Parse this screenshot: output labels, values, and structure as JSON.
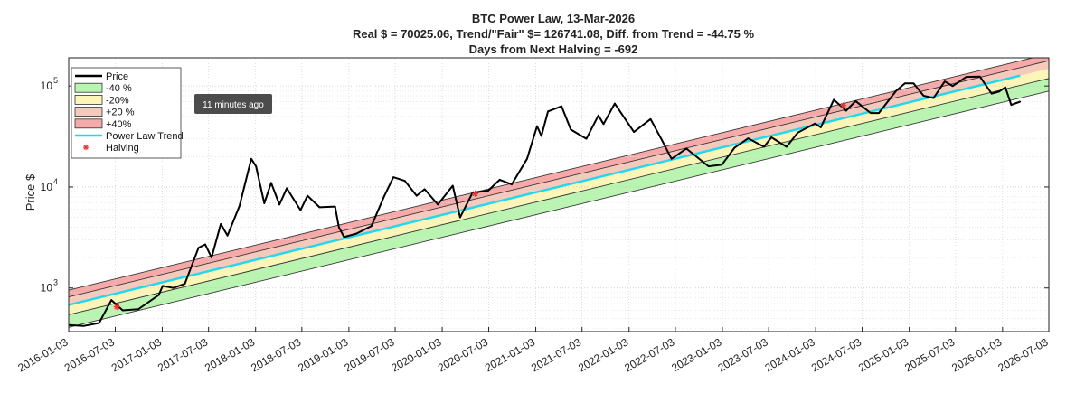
{
  "chart_data": {
    "type": "line",
    "title": "BTC Power Law, 13-Mar-2026",
    "subtitle_line1": "Real $ = 70025.06, Trend/\"Fair\" $=  126741.08, Diff. from Trend = -44.75 %",
    "subtitle_line2": "Days from Next Halving = -692",
    "ylabel": "Price $",
    "xlabel": "",
    "y_scale": "log",
    "ylim": [
      370,
      190000
    ],
    "xlim": [
      "2016-01-03",
      "2026-07-03"
    ],
    "grid": true,
    "y_ticks": [
      {
        "value": 1000,
        "base": "10",
        "exp": "3"
      },
      {
        "value": 10000,
        "base": "10",
        "exp": "4"
      },
      {
        "value": 100000,
        "base": "10",
        "exp": "5"
      }
    ],
    "x_ticks": [
      "2016-01-03",
      "2016-07-03",
      "2017-01-03",
      "2017-07-03",
      "2018-01-03",
      "2018-07-03",
      "2019-01-03",
      "2019-07-03",
      "2020-01-03",
      "2020-07-03",
      "2021-01-03",
      "2021-07-03",
      "2022-01-03",
      "2022-07-03",
      "2023-01-03",
      "2023-07-03",
      "2024-01-03",
      "2024-07-03",
      "2025-01-03",
      "2025-07-03",
      "2026-01-03",
      "2026-07-03"
    ],
    "trend": {
      "name": "Power Law Trend",
      "color": "#22d8ee",
      "start": {
        "date": "2016-01-03",
        "value": 680
      },
      "end": {
        "date": "2026-03-13",
        "value": 126741.08
      }
    },
    "bands": [
      {
        "name": "-40 %",
        "factor": 0.6,
        "color": "#b9f5b0"
      },
      {
        "name": "-20%",
        "factor": 0.8,
        "color": "#fbf6b8"
      },
      {
        "name": "+20 %",
        "factor": 1.2,
        "color": "#f6c9bd"
      },
      {
        "name": "+40%",
        "factor": 1.4,
        "color": "#f5a9a9"
      }
    ],
    "price_series": {
      "name": "Price",
      "color": "#000000",
      "points": [
        {
          "date": "2016-01-03",
          "value": 430
        },
        {
          "date": "2016-03-01",
          "value": 420
        },
        {
          "date": "2016-05-01",
          "value": 450
        },
        {
          "date": "2016-06-18",
          "value": 760
        },
        {
          "date": "2016-08-01",
          "value": 600
        },
        {
          "date": "2016-10-01",
          "value": 615
        },
        {
          "date": "2016-12-20",
          "value": 850
        },
        {
          "date": "2017-01-05",
          "value": 1050
        },
        {
          "date": "2017-02-15",
          "value": 1000
        },
        {
          "date": "2017-04-01",
          "value": 1100
        },
        {
          "date": "2017-05-25",
          "value": 2500
        },
        {
          "date": "2017-06-20",
          "value": 2700
        },
        {
          "date": "2017-07-15",
          "value": 2000
        },
        {
          "date": "2017-08-20",
          "value": 4300
        },
        {
          "date": "2017-09-15",
          "value": 3300
        },
        {
          "date": "2017-11-01",
          "value": 6500
        },
        {
          "date": "2017-12-17",
          "value": 19000
        },
        {
          "date": "2018-01-05",
          "value": 16000
        },
        {
          "date": "2018-02-06",
          "value": 6900
        },
        {
          "date": "2018-03-05",
          "value": 11000
        },
        {
          "date": "2018-04-06",
          "value": 6700
        },
        {
          "date": "2018-05-05",
          "value": 9700
        },
        {
          "date": "2018-06-28",
          "value": 5900
        },
        {
          "date": "2018-07-25",
          "value": 8200
        },
        {
          "date": "2018-09-10",
          "value": 6300
        },
        {
          "date": "2018-11-10",
          "value": 6400
        },
        {
          "date": "2018-11-25",
          "value": 4000
        },
        {
          "date": "2018-12-15",
          "value": 3200
        },
        {
          "date": "2019-02-01",
          "value": 3450
        },
        {
          "date": "2019-04-01",
          "value": 4100
        },
        {
          "date": "2019-05-20",
          "value": 8000
        },
        {
          "date": "2019-06-26",
          "value": 12500
        },
        {
          "date": "2019-08-10",
          "value": 11500
        },
        {
          "date": "2019-09-25",
          "value": 8200
        },
        {
          "date": "2019-10-26",
          "value": 9500
        },
        {
          "date": "2019-12-17",
          "value": 6700
        },
        {
          "date": "2020-02-13",
          "value": 10300
        },
        {
          "date": "2020-03-13",
          "value": 5000
        },
        {
          "date": "2020-05-01",
          "value": 8800
        },
        {
          "date": "2020-07-01",
          "value": 9200
        },
        {
          "date": "2020-08-15",
          "value": 11800
        },
        {
          "date": "2020-10-01",
          "value": 10600
        },
        {
          "date": "2020-11-30",
          "value": 19000
        },
        {
          "date": "2021-01-08",
          "value": 40000
        },
        {
          "date": "2021-01-25",
          "value": 32000
        },
        {
          "date": "2021-02-20",
          "value": 56000
        },
        {
          "date": "2021-04-14",
          "value": 63000
        },
        {
          "date": "2021-05-20",
          "value": 37000
        },
        {
          "date": "2021-07-20",
          "value": 30000
        },
        {
          "date": "2021-09-05",
          "value": 51000
        },
        {
          "date": "2021-09-25",
          "value": 42000
        },
        {
          "date": "2021-11-08",
          "value": 67000
        },
        {
          "date": "2022-01-22",
          "value": 35000
        },
        {
          "date": "2022-03-28",
          "value": 47000
        },
        {
          "date": "2022-05-12",
          "value": 29000
        },
        {
          "date": "2022-06-18",
          "value": 19000
        },
        {
          "date": "2022-08-15",
          "value": 24000
        },
        {
          "date": "2022-11-10",
          "value": 16000
        },
        {
          "date": "2023-01-01",
          "value": 16600
        },
        {
          "date": "2023-02-20",
          "value": 24500
        },
        {
          "date": "2023-04-14",
          "value": 30300
        },
        {
          "date": "2023-06-15",
          "value": 25000
        },
        {
          "date": "2023-07-14",
          "value": 31000
        },
        {
          "date": "2023-09-11",
          "value": 25000
        },
        {
          "date": "2023-10-25",
          "value": 34500
        },
        {
          "date": "2023-12-31",
          "value": 42500
        },
        {
          "date": "2024-01-23",
          "value": 39000
        },
        {
          "date": "2024-03-14",
          "value": 73000
        },
        {
          "date": "2024-05-01",
          "value": 57000
        },
        {
          "date": "2024-06-07",
          "value": 71000
        },
        {
          "date": "2024-08-05",
          "value": 54000
        },
        {
          "date": "2024-09-06",
          "value": 54000
        },
        {
          "date": "2024-11-12",
          "value": 89000
        },
        {
          "date": "2024-12-17",
          "value": 106000
        },
        {
          "date": "2025-01-20",
          "value": 106000
        },
        {
          "date": "2025-02-28",
          "value": 80000
        },
        {
          "date": "2025-04-08",
          "value": 76000
        },
        {
          "date": "2025-05-22",
          "value": 111000
        },
        {
          "date": "2025-06-22",
          "value": 100000
        },
        {
          "date": "2025-08-14",
          "value": 123000
        },
        {
          "date": "2025-10-06",
          "value": 124000
        },
        {
          "date": "2025-11-21",
          "value": 84000
        },
        {
          "date": "2025-12-20",
          "value": 88000
        },
        {
          "date": "2026-01-14",
          "value": 97000
        },
        {
          "date": "2026-02-06",
          "value": 65000
        },
        {
          "date": "2026-03-13",
          "value": 70025.06
        }
      ]
    },
    "halvings": [
      {
        "date": "2016-07-09",
        "value": 650
      },
      {
        "date": "2020-05-11",
        "value": 8600
      },
      {
        "date": "2024-04-20",
        "value": 64000
      }
    ],
    "legend": {
      "placement": "top-left",
      "entries": [
        "Price",
        "-40 %",
        "-20%",
        "+20 %",
        "+40%",
        "Power Law Trend",
        "Halving"
      ]
    },
    "halving_color": "#e83030",
    "band_line_color": "#333333"
  },
  "tooltip": {
    "text": "11 minutes ago"
  }
}
